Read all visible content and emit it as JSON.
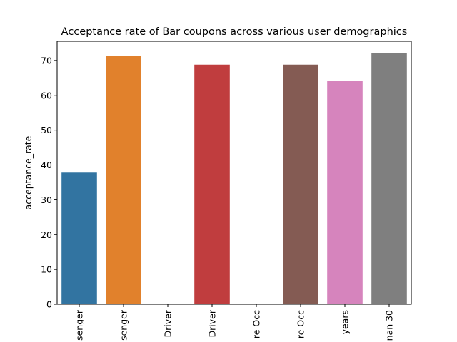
{
  "chart_data": {
    "type": "bar",
    "title": "Acceptance rate of Bar coupons across various user demographics",
    "xlabel": "",
    "ylabel": "acceptance_rate",
    "ylim": [
      0,
      75.5
    ],
    "yticks": [
      0,
      10,
      20,
      30,
      40,
      50,
      60,
      70
    ],
    "categories": [
      "senger",
      "senger",
      "Driver",
      "Driver",
      "re Occ",
      "re Occ",
      "years",
      "nan 30"
    ],
    "values": [
      37.8,
      71.3,
      0,
      68.8,
      0,
      68.8,
      64.2,
      72.1
    ],
    "colors": [
      "#3274a1",
      "#e1812c",
      "#3a923a",
      "#c03d3e",
      "#9372b2",
      "#845b53",
      "#d684bd",
      "#7f7f7f"
    ],
    "grid": false,
    "legend": "none"
  }
}
